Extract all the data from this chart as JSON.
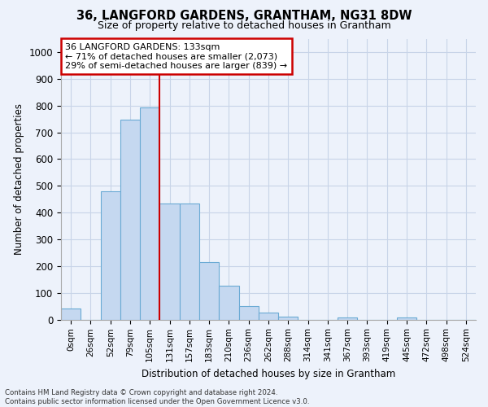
{
  "title": "36, LANGFORD GARDENS, GRANTHAM, NG31 8DW",
  "subtitle": "Size of property relative to detached houses in Grantham",
  "xlabel": "Distribution of detached houses by size in Grantham",
  "ylabel": "Number of detached properties",
  "bar_labels": [
    "0sqm",
    "26sqm",
    "52sqm",
    "79sqm",
    "105sqm",
    "131sqm",
    "157sqm",
    "183sqm",
    "210sqm",
    "236sqm",
    "262sqm",
    "288sqm",
    "314sqm",
    "341sqm",
    "367sqm",
    "393sqm",
    "419sqm",
    "445sqm",
    "472sqm",
    "498sqm",
    "524sqm"
  ],
  "bar_values": [
    40,
    0,
    480,
    748,
    793,
    433,
    433,
    215,
    127,
    50,
    25,
    12,
    0,
    0,
    8,
    0,
    0,
    8,
    0,
    0,
    0
  ],
  "bar_color": "#c5d8f0",
  "bar_edge_color": "#6aaad4",
  "property_line_label": "36 LANGFORD GARDENS: 133sqm",
  "annotation_line1": "← 71% of detached houses are smaller (2,073)",
  "annotation_line2": "29% of semi-detached houses are larger (839) →",
  "annotation_box_color": "#ffffff",
  "annotation_box_edge": "#cc0000",
  "vline_color": "#cc0000",
  "vline_x_index": 4.5,
  "ylim": [
    0,
    1050
  ],
  "yticks": [
    0,
    100,
    200,
    300,
    400,
    500,
    600,
    700,
    800,
    900,
    1000
  ],
  "grid_color": "#c8d4e8",
  "background_color": "#edf2fb",
  "footer_line1": "Contains HM Land Registry data © Crown copyright and database right 2024.",
  "footer_line2": "Contains public sector information licensed under the Open Government Licence v3.0."
}
